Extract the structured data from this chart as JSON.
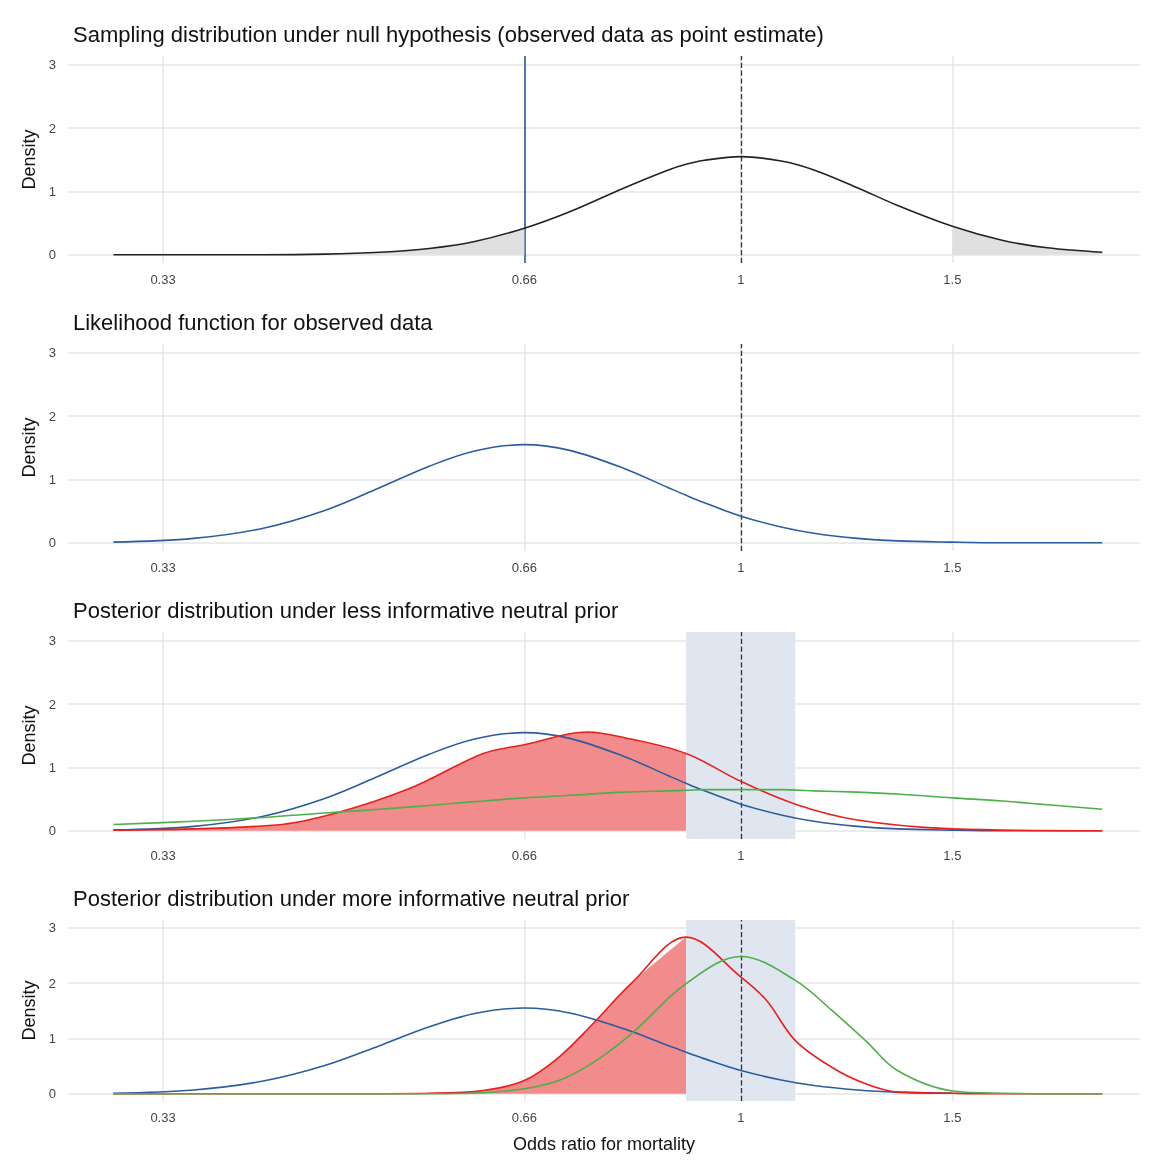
{
  "chart_data": [
    {
      "type": "line",
      "title": "Sampling distribution under null hypothesis (observed data as point estimate)",
      "ylabel": "Density",
      "log": "x",
      "grid": true,
      "xlim": [
        0.275,
        2.15
      ],
      "xticks": [
        0.33,
        0.66,
        1,
        1.5
      ],
      "ylim": [
        -0.13,
        3.14
      ],
      "yticks": [
        0,
        1,
        2,
        3
      ],
      "ref_lines": [
        {
          "axis": "x",
          "value": 0.66,
          "color": "#2b5c9e",
          "line_style": "solid"
        },
        {
          "axis": "x",
          "value": 1,
          "color": "#333333",
          "line_style": "dashed"
        }
      ],
      "series": [
        {
          "type": "area",
          "color": "#e0e0e0",
          "x": [
            0.3,
            0.35,
            0.4,
            0.45,
            0.5,
            0.55,
            0.6,
            0.66
          ],
          "values": [
            0,
            0,
            0,
            0.01,
            0.04,
            0.1,
            0.21,
            0.42
          ]
        },
        {
          "type": "area",
          "color": "#e0e0e0",
          "x": [
            1.5,
            1.65,
            1.8,
            2.0
          ],
          "values": [
            0.45,
            0.23,
            0.11,
            0.04
          ]
        },
        {
          "type": "line",
          "color": "#222222",
          "x": [
            0.3,
            0.35,
            0.4,
            0.45,
            0.5,
            0.55,
            0.6,
            0.66,
            0.72,
            0.8,
            0.87,
            0.9,
            0.93,
            1,
            1.08,
            1.15,
            1.25,
            1.35,
            1.5,
            1.65,
            1.8,
            2.0
          ],
          "values": [
            0,
            0,
            0,
            0.01,
            0.04,
            0.1,
            0.21,
            0.42,
            0.68,
            1.06,
            1.34,
            1.43,
            1.49,
            1.55,
            1.48,
            1.34,
            1.06,
            0.78,
            0.45,
            0.23,
            0.11,
            0.04
          ]
        }
      ]
    },
    {
      "type": "line",
      "title": "Likelihood function for observed data",
      "ylabel": "Density",
      "log": "x",
      "grid": true,
      "xlim": [
        0.275,
        2.15
      ],
      "xticks": [
        0.33,
        0.66,
        1,
        1.5
      ],
      "ylim": [
        -0.13,
        3.14
      ],
      "yticks": [
        0,
        1,
        2,
        3
      ],
      "ref_lines": [
        {
          "axis": "x",
          "value": 1,
          "color": "#333333",
          "line_style": "dashed"
        }
      ],
      "series": [
        {
          "type": "line",
          "color": "#2b5c9e",
          "x": [
            0.3,
            0.35,
            0.4,
            0.45,
            0.5,
            0.55,
            0.6,
            0.66,
            0.72,
            0.8,
            0.87,
            0.9,
            0.93,
            1,
            1.08,
            1.15,
            1.25,
            1.35,
            1.5,
            1.65,
            1.8,
            2.0
          ],
          "values": [
            0.01,
            0.07,
            0.23,
            0.51,
            0.87,
            1.21,
            1.45,
            1.55,
            1.46,
            1.17,
            0.87,
            0.75,
            0.64,
            0.42,
            0.25,
            0.15,
            0.07,
            0.03,
            0.01,
            0,
            0,
            0
          ]
        }
      ]
    },
    {
      "type": "line",
      "title": "Posterior distribution under less informative neutral prior",
      "ylabel": "Density",
      "log": "x",
      "grid": true,
      "xlim": [
        0.275,
        2.15
      ],
      "xticks": [
        0.33,
        0.66,
        1,
        1.5
      ],
      "ylim": [
        -0.13,
        3.14
      ],
      "yticks": [
        0,
        1,
        2,
        3
      ],
      "bands": [
        {
          "axis": "x",
          "from": 0.9,
          "to": 1.11,
          "color": "#dfe6f0"
        }
      ],
      "ref_lines": [
        {
          "axis": "x",
          "value": 1,
          "color": "#333333",
          "line_style": "dashed"
        }
      ],
      "series": [
        {
          "type": "area",
          "color": "#f28b8b",
          "x": [
            0.3,
            0.41,
            0.46,
            0.53,
            0.61,
            0.66,
            0.745,
            0.8,
            0.9
          ],
          "values": [
            0.01,
            0.09,
            0.28,
            0.67,
            1.22,
            1.36,
            1.56,
            1.47,
            1.22
          ]
        },
        {
          "type": "line",
          "color": "#2b5c9e",
          "x": [
            0.3,
            0.35,
            0.4,
            0.45,
            0.5,
            0.55,
            0.6,
            0.66,
            0.72,
            0.8,
            0.87,
            0.9,
            0.93,
            1,
            1.08,
            1.15,
            1.25,
            1.35,
            1.5,
            1.65,
            1.8,
            2.0
          ],
          "values": [
            0.01,
            0.07,
            0.23,
            0.51,
            0.87,
            1.21,
            1.45,
            1.55,
            1.46,
            1.17,
            0.87,
            0.75,
            0.64,
            0.42,
            0.25,
            0.15,
            0.07,
            0.03,
            0.01,
            0,
            0,
            0
          ]
        },
        {
          "type": "line",
          "color": "#e8201c",
          "x": [
            0.3,
            0.41,
            0.46,
            0.53,
            0.61,
            0.66,
            0.745,
            0.8,
            0.9,
            1,
            1.11,
            1.25,
            1.5,
            2.0
          ],
          "values": [
            0.01,
            0.09,
            0.28,
            0.67,
            1.22,
            1.36,
            1.56,
            1.47,
            1.22,
            0.78,
            0.42,
            0.17,
            0.03,
            0
          ]
        },
        {
          "type": "line",
          "color": "#4daf4a",
          "x": [
            0.3,
            0.35,
            0.4,
            0.45,
            0.5,
            0.55,
            0.6,
            0.66,
            0.72,
            0.8,
            0.87,
            0.9,
            0.93,
            1,
            1.08,
            1.15,
            1.25,
            1.35,
            1.5,
            1.65,
            1.8,
            2.0
          ],
          "values": [
            0.1,
            0.15,
            0.21,
            0.28,
            0.34,
            0.4,
            0.46,
            0.52,
            0.56,
            0.61,
            0.63,
            0.64,
            0.65,
            0.65,
            0.65,
            0.63,
            0.61,
            0.58,
            0.52,
            0.47,
            0.41,
            0.34
          ]
        }
      ]
    },
    {
      "type": "line",
      "title": "Posterior distribution under more informative neutral prior",
      "xlabel": "Odds ratio for mortality",
      "ylabel": "Density",
      "log": "x",
      "grid": true,
      "xlim": [
        0.275,
        2.15
      ],
      "xticks": [
        0.33,
        0.66,
        1,
        1.5
      ],
      "ylim": [
        -0.13,
        3.14
      ],
      "yticks": [
        0,
        1,
        2,
        3
      ],
      "bands": [
        {
          "axis": "x",
          "from": 0.9,
          "to": 1.11,
          "color": "#dfe6f0"
        }
      ],
      "ref_lines": [
        {
          "axis": "x",
          "value": 1,
          "color": "#333333",
          "line_style": "dashed"
        }
      ],
      "series": [
        {
          "type": "area",
          "color": "#f28b8b",
          "x": [
            0.3,
            0.45,
            0.55,
            0.61,
            0.66,
            0.705,
            0.75,
            0.81,
            0.9
          ],
          "values": [
            0,
            0,
            0.01,
            0.06,
            0.24,
            0.66,
            1.23,
            1.99,
            2.83
          ]
        },
        {
          "type": "line",
          "color": "#2b5c9e",
          "x": [
            0.3,
            0.35,
            0.4,
            0.45,
            0.5,
            0.55,
            0.6,
            0.66,
            0.72,
            0.8,
            0.87,
            0.9,
            0.93,
            1,
            1.08,
            1.15,
            1.25,
            1.35,
            1.5
          ],
          "values": [
            0.01,
            0.07,
            0.23,
            0.51,
            0.87,
            1.21,
            1.45,
            1.55,
            1.46,
            1.17,
            0.87,
            0.75,
            0.64,
            0.42,
            0.25,
            0.15,
            0.07,
            0.03,
            0.01
          ]
        },
        {
          "type": "line",
          "color": "#e8201c",
          "x": [
            0.3,
            0.45,
            0.55,
            0.61,
            0.66,
            0.705,
            0.75,
            0.81,
            0.9,
            1,
            1.05,
            1.11,
            1.19,
            1.27,
            1.35,
            1.5,
            1.65,
            2.0
          ],
          "values": [
            0,
            0,
            0.01,
            0.06,
            0.24,
            0.66,
            1.23,
            1.99,
            2.83,
            2.11,
            1.69,
            0.96,
            0.48,
            0.18,
            0.03,
            0.01,
            0,
            0
          ]
        },
        {
          "type": "line",
          "color": "#4daf4a",
          "x": [
            0.3,
            0.45,
            0.55,
            0.61,
            0.66,
            0.705,
            0.75,
            0.81,
            0.9,
            1,
            1.11,
            1.19,
            1.27,
            1.35,
            1.5,
            1.65,
            2.0
          ],
          "values": [
            0,
            0,
            0,
            0.02,
            0.09,
            0.24,
            0.54,
            1.08,
            1.99,
            2.48,
            2.05,
            1.51,
            0.96,
            0.42,
            0.05,
            0.01,
            0
          ]
        }
      ]
    }
  ]
}
